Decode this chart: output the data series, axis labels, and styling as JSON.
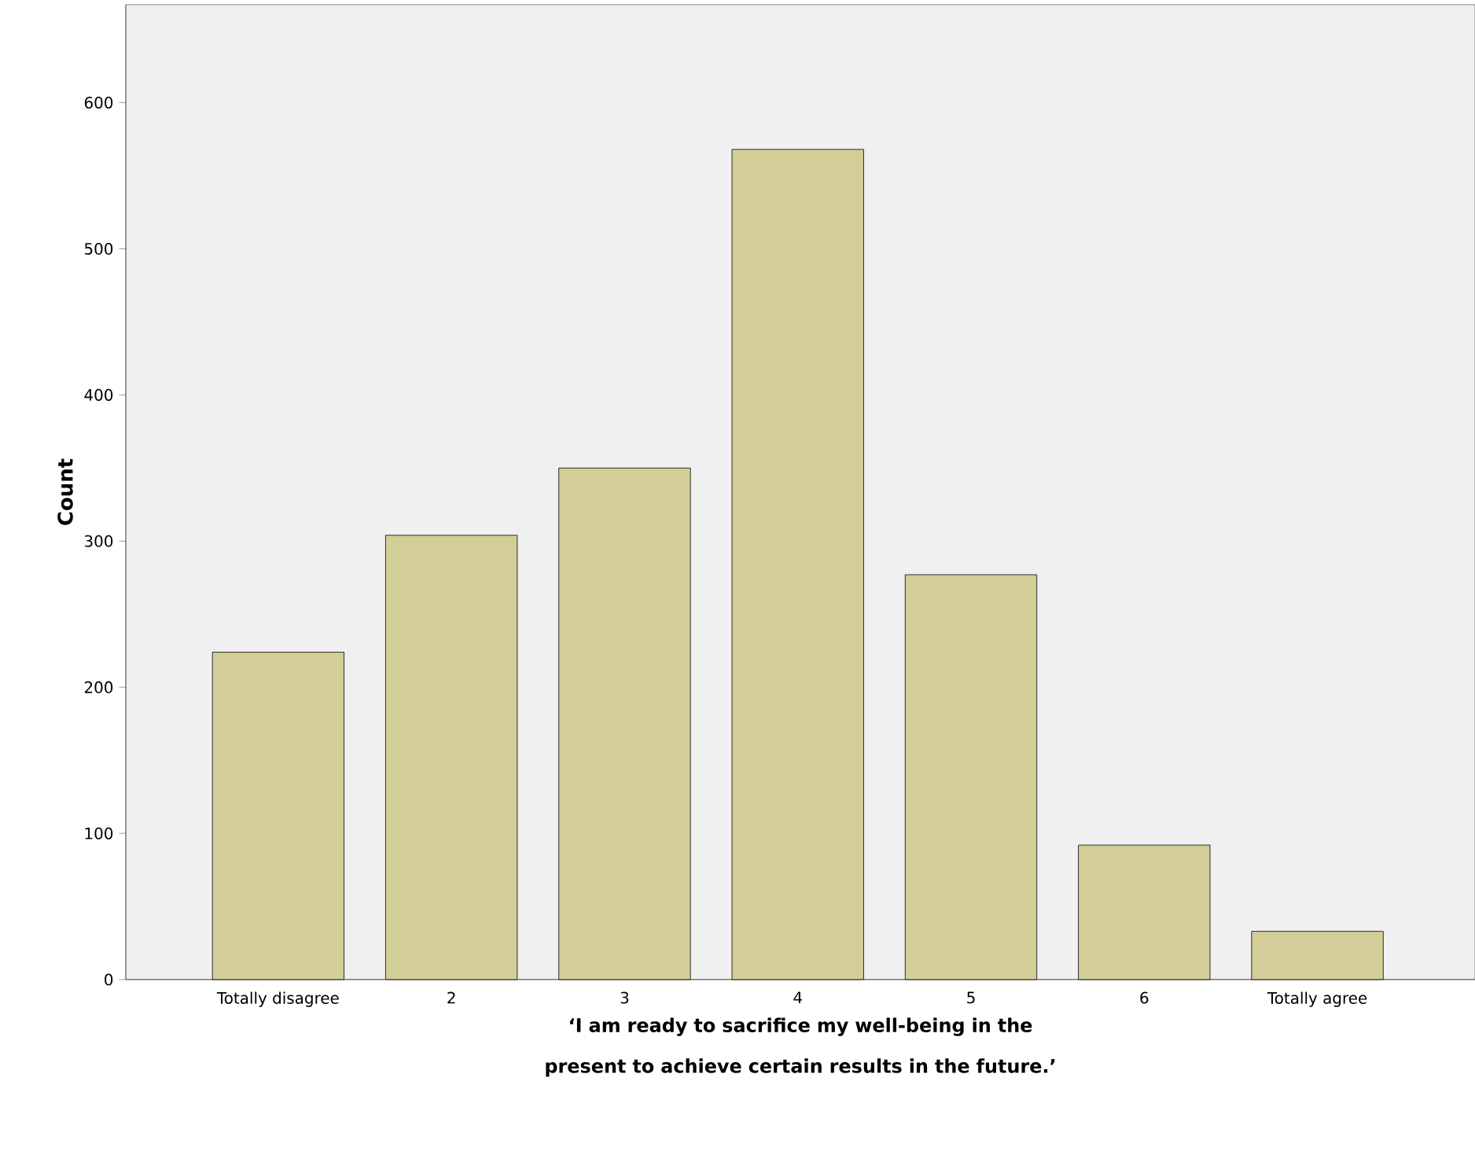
{
  "chart_data": {
    "type": "bar",
    "categories": [
      "Totally disagree",
      "2",
      "3",
      "4",
      "5",
      "6",
      "Totally agree"
    ],
    "values": [
      224,
      304,
      350,
      568,
      277,
      92,
      33
    ],
    "color": "#d3ce97",
    "xlabel": "‘I am ready to sacrifice my well-being in the present to achieve certain results in the future.’",
    "ylabel": "Count",
    "ylim": [
      0,
      667
    ],
    "yticks": [
      0,
      100,
      200,
      300,
      400,
      500,
      600
    ]
  }
}
